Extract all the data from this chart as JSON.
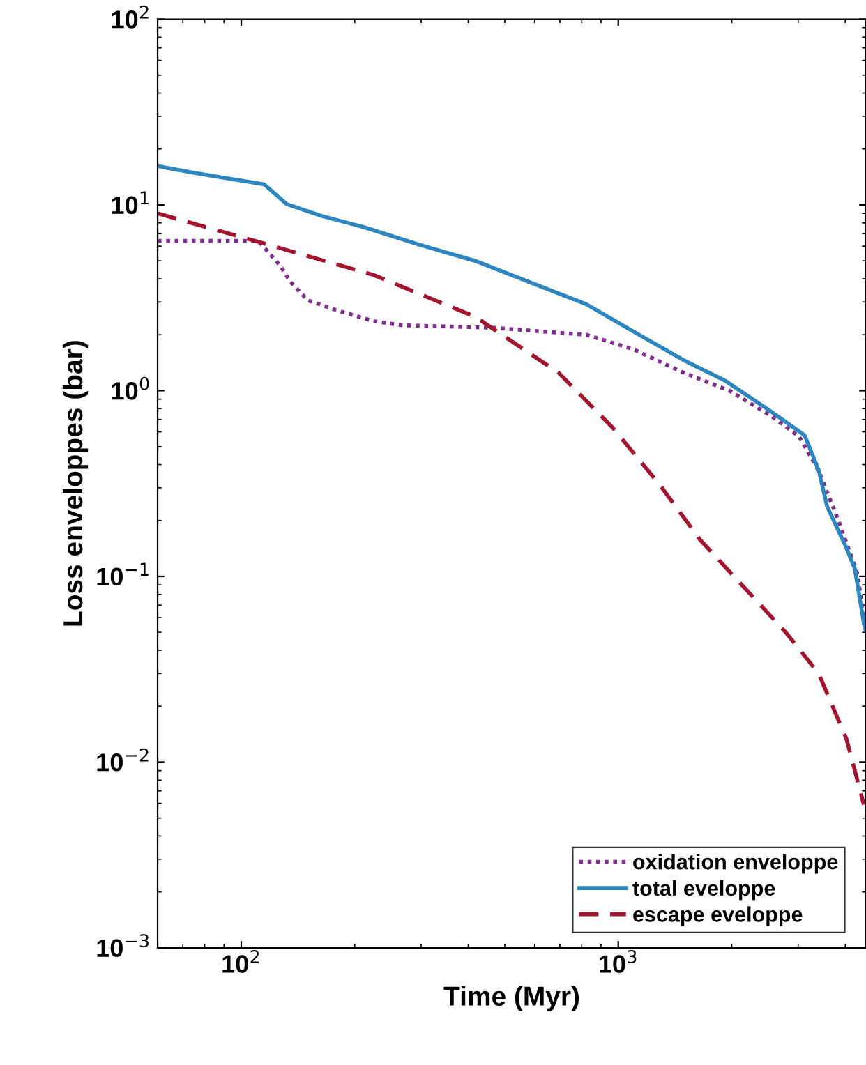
{
  "chart_data": {
    "type": "line",
    "xlabel": "Time (Myr)",
    "ylabel": "Loss enveloppes (bar)",
    "log": "xy",
    "grid": false,
    "legend": "bottom right",
    "xlim": [
      60,
      4540
    ],
    "ylim": [
      0.001,
      100
    ],
    "xticks": [
      {
        "value": 100,
        "label": "10$^{2}$"
      },
      {
        "value": 1000,
        "label": "10$^{3}$"
      }
    ],
    "yticks": [
      {
        "value": 0.001,
        "label": "10$^{−3}$"
      },
      {
        "value": 0.01,
        "label": "10$^{−2}$"
      },
      {
        "value": 0.1,
        "label": "10$^{−1}$"
      },
      {
        "value": 1,
        "label": "10$^{0}$"
      },
      {
        "value": 10,
        "label": "10$^{1}$"
      },
      {
        "value": 100,
        "label": "10$^{2}$"
      }
    ],
    "series": [
      {
        "name": "oxidation enveloppe",
        "color": "#7e2f8e",
        "line_style": "dotted",
        "x": [
          60,
          111,
          127,
          135,
          150,
          178,
          224,
          266,
          465,
          822,
          1089,
          1490,
          1970,
          2548,
          3020,
          3400,
          3800,
          4300,
          4540
        ],
        "values": [
          6.4,
          6.4,
          4.7,
          3.85,
          3.07,
          2.72,
          2.37,
          2.25,
          2.18,
          2.0,
          1.68,
          1.25,
          1.0,
          0.73,
          0.565,
          0.37,
          0.21,
          0.105,
          0.05
        ]
      },
      {
        "name": "total eveloppe",
        "color": "#2e86c1",
        "line_style": "solid",
        "x": [
          60,
          76,
          94,
          115,
          132,
          164,
          211,
          297,
          417,
          822,
          1089,
          1490,
          1923,
          2548,
          3120,
          3400,
          3580,
          4030,
          4240,
          4480,
          4540
        ],
        "values": [
          16.2,
          14.8,
          13.8,
          12.9,
          10.1,
          8.7,
          7.6,
          6.1,
          5.0,
          2.92,
          2.1,
          1.46,
          1.13,
          0.77,
          0.575,
          0.373,
          0.238,
          0.142,
          0.11,
          0.056,
          0.051
        ]
      },
      {
        "name": "escape eveloppe",
        "color": "#a2142f",
        "line_style": "dashed",
        "x": [
          60,
          110,
          224,
          417,
          694,
          968,
          1290,
          1650,
          2085,
          2780,
          3400,
          4030,
          4480
        ],
        "values": [
          9.0,
          6.36,
          4.2,
          2.5,
          1.25,
          0.63,
          0.31,
          0.157,
          0.094,
          0.05,
          0.03,
          0.0133,
          0.0059
        ]
      }
    ]
  }
}
